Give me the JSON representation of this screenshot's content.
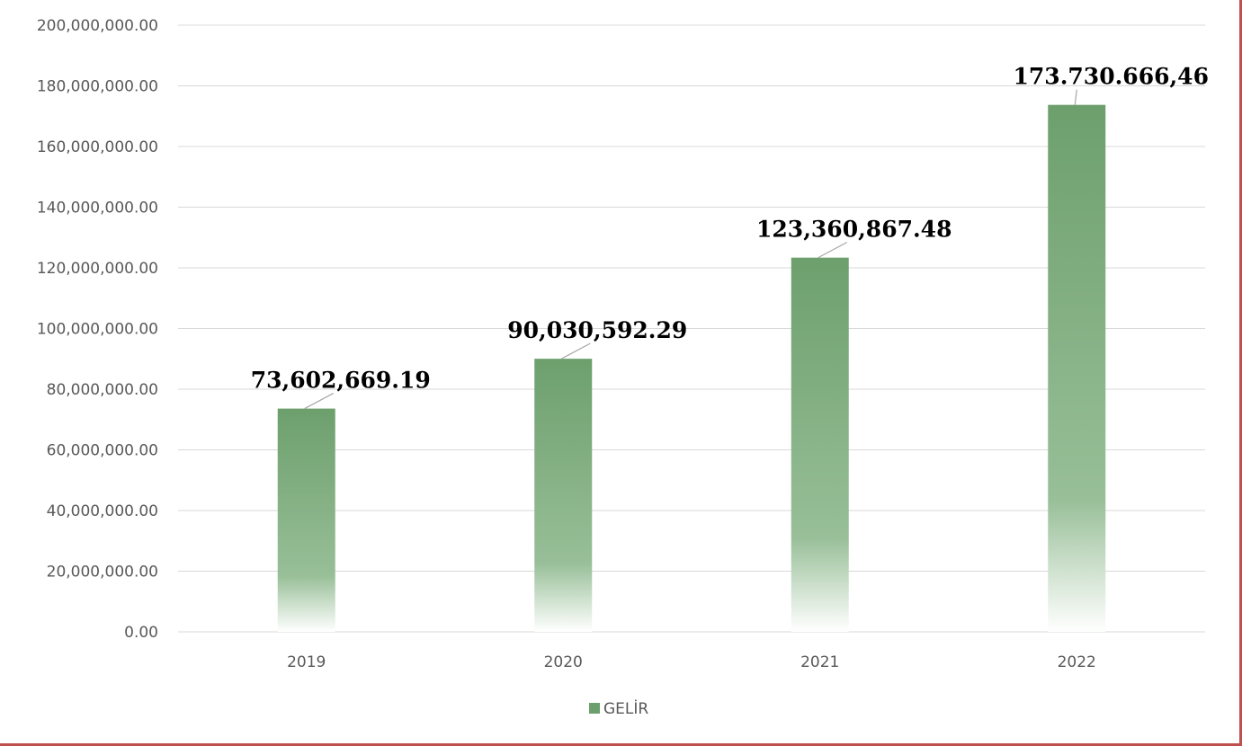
{
  "chart_data": {
    "type": "bar",
    "categories": [
      "2019",
      "2020",
      "2021",
      "2022"
    ],
    "series": [
      {
        "name": "GELİR",
        "values": [
          73602669.19,
          90030592.29,
          123360867.48,
          173730666.46
        ],
        "data_labels": [
          "73,602,669.19",
          "90,030,592.29",
          "123,360,867.48",
          "173.730.666,46"
        ]
      }
    ],
    "y_ticks": [
      "0.00",
      "20,000,000.00",
      "40,000,000.00",
      "60,000,000.00",
      "80,000,000.00",
      "100,000,000.00",
      "120,000,000.00",
      "140,000,000.00",
      "160,000,000.00",
      "180,000,000.00",
      "200,000,000.00"
    ],
    "ylim": [
      0,
      200000000
    ],
    "grid": true,
    "legend_position": "bottom",
    "colors": {
      "bar": "#6d9f6d",
      "grid": "#d9d9d9",
      "frame": "#c0504d"
    }
  }
}
